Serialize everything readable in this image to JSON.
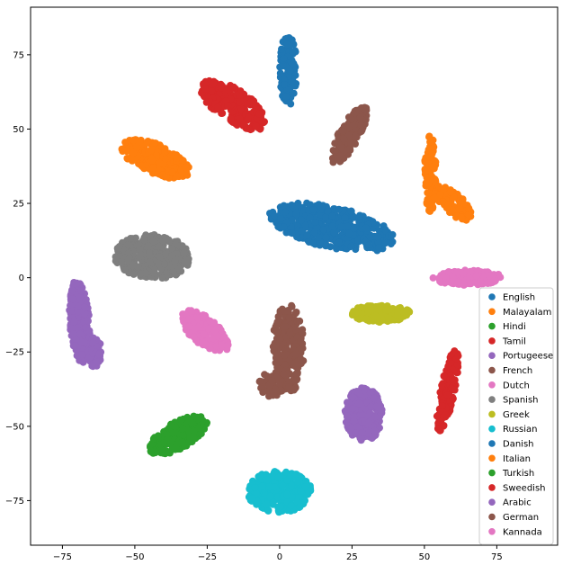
{
  "chart_data": {
    "type": "scatter",
    "title": "",
    "xlabel": "",
    "ylabel": "",
    "xlim": [
      -86,
      96
    ],
    "ylim": [
      -90,
      91
    ],
    "xticks": [
      -75,
      -50,
      -25,
      0,
      25,
      50,
      75
    ],
    "yticks": [
      -75,
      -50,
      -25,
      0,
      25,
      50,
      75
    ],
    "grid": false,
    "legend_position": "lower-right",
    "series": [
      {
        "name": "English",
        "color": "#1f77b4",
        "clusters": [
          {
            "x": 3,
            "y": 70,
            "rx": 3,
            "ry": 12,
            "angle": 0,
            "n": 110
          },
          {
            "x": 18,
            "y": 17,
            "rx": 22,
            "ry": 7,
            "angle": -12,
            "n": 420
          }
        ]
      },
      {
        "name": "Malayalam",
        "color": "#ff7f0e",
        "clusters": [
          {
            "x": -43,
            "y": 40,
            "rx": 13,
            "ry": 5,
            "angle": -22,
            "n": 260
          },
          {
            "x": 52,
            "y": 35,
            "rx": 2,
            "ry": 13,
            "angle": 0,
            "n": 90
          },
          {
            "x": 60,
            "y": 25,
            "rx": 8,
            "ry": 3.5,
            "angle": -40,
            "n": 110
          }
        ]
      },
      {
        "name": "Hindi",
        "color": "#2ca02c",
        "clusters": [
          {
            "x": -35,
            "y": -53,
            "rx": 11,
            "ry": 4.5,
            "angle": 28,
            "n": 220
          }
        ]
      },
      {
        "name": "Tamil",
        "color": "#d62728",
        "clusters": [
          {
            "x": -16,
            "y": 58,
            "rx": 13,
            "ry": 5.5,
            "angle": -33,
            "n": 260
          }
        ]
      },
      {
        "name": "Portugeese",
        "color": "#9467bd",
        "clusters": [
          {
            "x": -69,
            "y": -15,
            "rx": 3.5,
            "ry": 14,
            "angle": 5,
            "n": 200
          },
          {
            "x": -64,
            "y": -25,
            "rx": 2.5,
            "ry": 5,
            "angle": 0,
            "n": 60
          }
        ]
      },
      {
        "name": "French",
        "color": "#8c564b",
        "clusters": [
          {
            "x": 24,
            "y": 48,
            "rx": 3.5,
            "ry": 11,
            "angle": -30,
            "n": 180
          }
        ]
      },
      {
        "name": "Dutch",
        "color": "#e377c2",
        "clusters": [
          {
            "x": 65,
            "y": 0,
            "rx": 12,
            "ry": 2.5,
            "angle": 0,
            "n": 170
          }
        ]
      },
      {
        "name": "Spanish",
        "color": "#7f7f7f",
        "clusters": [
          {
            "x": -44,
            "y": 7,
            "rx": 13,
            "ry": 7.5,
            "angle": -3,
            "n": 360
          }
        ]
      },
      {
        "name": "Greek",
        "color": "#bcbd22",
        "clusters": [
          {
            "x": 35,
            "y": -12,
            "rx": 10,
            "ry": 3,
            "angle": 0,
            "n": 140
          }
        ]
      },
      {
        "name": "Russian",
        "color": "#17becf",
        "clusters": [
          {
            "x": 0,
            "y": -72,
            "rx": 11,
            "ry": 7,
            "angle": 0,
            "n": 280
          }
        ]
      },
      {
        "name": "Danish",
        "color": "#1f77b4",
        "clusters": []
      },
      {
        "name": "Italian",
        "color": "#ff7f0e",
        "clusters": []
      },
      {
        "name": "Turkish",
        "color": "#2ca02c",
        "clusters": []
      },
      {
        "name": "Sweedish",
        "color": "#d62728",
        "clusters": [
          {
            "x": 58,
            "y": -38,
            "rx": 2.5,
            "ry": 14,
            "angle": -12,
            "n": 150
          }
        ]
      },
      {
        "name": "Arabic",
        "color": "#9467bd",
        "clusters": [
          {
            "x": 29,
            "y": -46,
            "rx": 6.5,
            "ry": 9,
            "angle": 0,
            "n": 220
          }
        ]
      },
      {
        "name": "German",
        "color": "#8c564b",
        "clusters": [
          {
            "x": 3,
            "y": -24,
            "rx": 5.5,
            "ry": 15,
            "angle": 0,
            "n": 260
          },
          {
            "x": -3,
            "y": -36,
            "rx": 4.5,
            "ry": 4,
            "angle": 0,
            "n": 60
          }
        ]
      },
      {
        "name": "Kannada",
        "color": "#e377c2",
        "clusters": [
          {
            "x": -26,
            "y": -18,
            "rx": 10,
            "ry": 4.5,
            "angle": -38,
            "n": 190
          }
        ]
      }
    ]
  }
}
